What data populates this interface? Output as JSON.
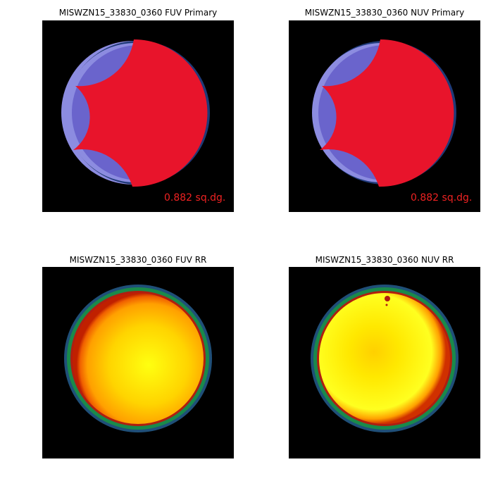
{
  "panels": [
    {
      "title": "MISWZN15_33830_0360 FUV Primary",
      "area_label": "0.882 sq.dg.",
      "kind": "primary"
    },
    {
      "title": "MISWZN15_33830_0360 NUV Primary",
      "area_label": "0.882 sq.dg.",
      "kind": "primary"
    },
    {
      "title": "MISWZN15_33830_0360 FUV RR",
      "kind": "rr"
    },
    {
      "title": "MISWZN15_33830_0360 NUV RR",
      "kind": "rr"
    }
  ],
  "colors": {
    "background": "#000000",
    "primary_fill": "#e8142b",
    "overlap_fill": "#6a64cc",
    "outer_ring": "#8c8ce0",
    "edge_ring": "#1f3a78",
    "rr_center": "#ffef00",
    "rr_mid": "#ffb000",
    "rr_edge": "#e04000",
    "rr_green": "#1a8a4a",
    "rr_blue": "#1f4f78",
    "label_red": "#ee2222"
  }
}
